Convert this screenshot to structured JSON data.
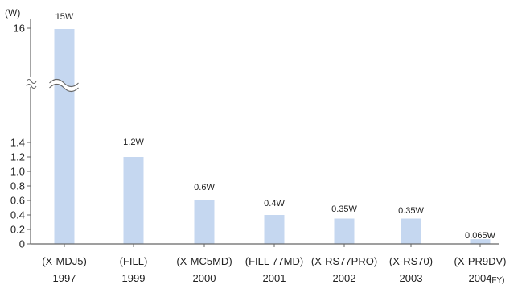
{
  "chart_data": {
    "type": "bar",
    "y_unit": "(W)",
    "x_unit": "(FY)",
    "bar_color": "#c5d7f0",
    "axis_color": "#666666",
    "categories": [
      {
        "model": "(X-MDJ5)",
        "year": "1997"
      },
      {
        "model": "(FILL)",
        "year": "1999"
      },
      {
        "model": "(X-MC5MD)",
        "year": "2000"
      },
      {
        "model": "(FILL 77MD)",
        "year": "2001"
      },
      {
        "model": "(X-RS77PRO)",
        "year": "2002"
      },
      {
        "model": "(X-RS70)",
        "year": "2003"
      },
      {
        "model": "(X-PR9DV)",
        "year": "2004"
      }
    ],
    "values": [
      15,
      1.2,
      0.6,
      0.4,
      0.35,
      0.35,
      0.065
    ],
    "value_labels": [
      "15W",
      "1.2W",
      "0.6W",
      "0.4W",
      "0.35W",
      "0.35W",
      "0.065W"
    ],
    "y_ticks": [
      "0",
      "0.2",
      "0.4",
      "0.6",
      "0.8",
      "1.0",
      "1.2",
      "1.4",
      "16"
    ],
    "y_axis_break": true,
    "ylim": [
      0,
      16
    ],
    "grid": false
  }
}
